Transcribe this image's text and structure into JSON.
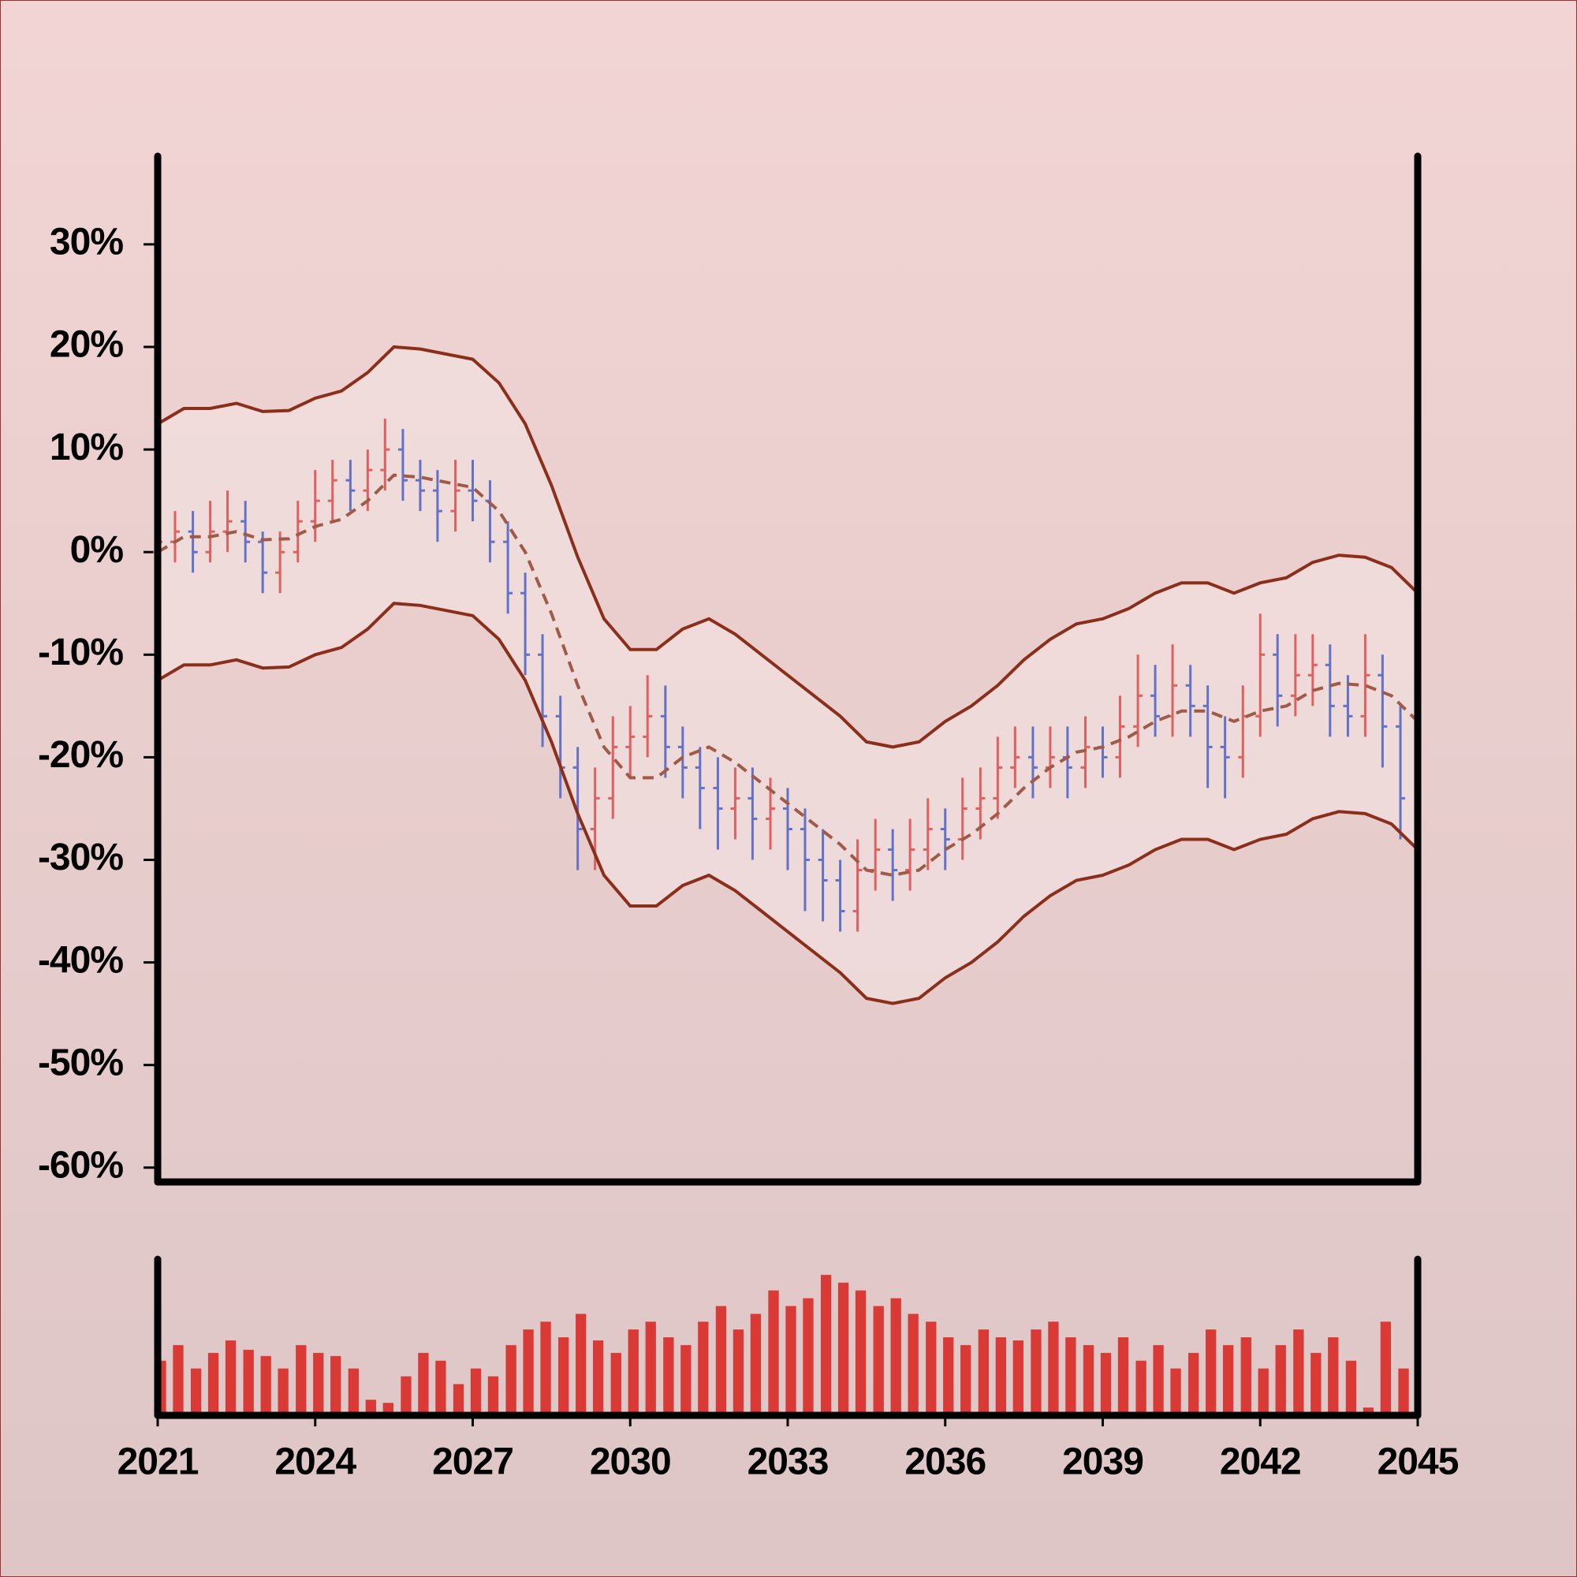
{
  "chart_data": {
    "type": "ohlc",
    "xlim": [
      2021,
      2045
    ],
    "xticks": [
      2021,
      2024,
      2027,
      2030,
      2033,
      2036,
      2039,
      2042,
      2045
    ],
    "ylim": [
      -61.4,
      38.6
    ],
    "yticks": [
      {
        "value": 30,
        "label": "30%"
      },
      {
        "value": 20,
        "label": "20%"
      },
      {
        "value": 10,
        "label": "10%"
      },
      {
        "value": 0,
        "label": "0%"
      },
      {
        "value": -10,
        "label": "-10%"
      },
      {
        "value": -20,
        "label": "-20%"
      },
      {
        "value": -30,
        "label": "-30%"
      },
      {
        "value": -40,
        "label": "-40%"
      },
      {
        "value": -50,
        "label": "-50%"
      },
      {
        "value": -60,
        "label": "-60%"
      }
    ],
    "up_color": "#e06060",
    "down_color": "#6272c8",
    "x": [
      2021,
      2021.33,
      2021.67,
      2022,
      2022.33,
      2022.67,
      2023,
      2023.33,
      2023.67,
      2024,
      2024.33,
      2024.67,
      2025,
      2025.33,
      2025.67,
      2026,
      2026.33,
      2026.67,
      2027,
      2027.33,
      2027.67,
      2028,
      2028.33,
      2028.67,
      2029,
      2029.33,
      2029.67,
      2030,
      2030.33,
      2030.67,
      2031,
      2031.33,
      2031.67,
      2032,
      2032.33,
      2032.67,
      2033,
      2033.33,
      2033.67,
      2034,
      2034.33,
      2034.67,
      2035,
      2035.33,
      2035.67,
      2036,
      2036.33,
      2036.67,
      2037,
      2037.33,
      2037.67,
      2038,
      2038.33,
      2038.67,
      2039,
      2039.33,
      2039.67,
      2040,
      2040.33,
      2040.67,
      2041,
      2041.33,
      2041.67,
      2042,
      2042.33,
      2042.67,
      2043,
      2043.33,
      2043.67,
      2044,
      2044.33,
      2044.67
    ],
    "open": [
      0,
      1,
      2,
      0,
      2,
      3,
      1,
      -2,
      0,
      3,
      5,
      7,
      6,
      8,
      10,
      7,
      6,
      4,
      6,
      5,
      1,
      -4,
      -10,
      -16,
      -21,
      -27,
      -24,
      -19,
      -18,
      -16,
      -19,
      -21,
      -23,
      -25,
      -24,
      -26,
      -25,
      -27,
      -30,
      -32,
      -35,
      -31,
      -29,
      -31,
      -29,
      -27,
      -28,
      -25,
      -24,
      -21,
      -20,
      -21,
      -20,
      -21,
      -19,
      -20,
      -17,
      -14,
      -16,
      -13,
      -15,
      -19,
      -20,
      -16,
      -10,
      -14,
      -12,
      -11,
      -15,
      -16,
      -12,
      -17
    ],
    "high": [
      4,
      4,
      4,
      5,
      6,
      5,
      2,
      2,
      5,
      8,
      9,
      9,
      10,
      13,
      12,
      9,
      8,
      9,
      9,
      7,
      3,
      -2,
      -8,
      -14,
      -19,
      -21,
      -16,
      -15,
      -12,
      -13,
      -17,
      -19,
      -20,
      -21,
      -21,
      -22,
      -23,
      -25,
      -27,
      -30,
      -28,
      -26,
      -27,
      -26,
      -24,
      -25,
      -22,
      -21,
      -18,
      -17,
      -17,
      -17,
      -17,
      -16,
      -17,
      -14,
      -10,
      -11,
      -9,
      -11,
      -13,
      -16,
      -13,
      -6,
      -8,
      -8,
      -8,
      -9,
      -12,
      -8,
      -10,
      -15
    ],
    "low": [
      -3,
      -1,
      -2,
      -1,
      0,
      -1,
      -4,
      -4,
      -1,
      1,
      3,
      4,
      4,
      6,
      5,
      4,
      1,
      2,
      3,
      -1,
      -6,
      -12,
      -19,
      -24,
      -31,
      -31,
      -26,
      -22,
      -20,
      -22,
      -24,
      -27,
      -29,
      -28,
      -30,
      -29,
      -31,
      -35,
      -36,
      -37,
      -37,
      -33,
      -34,
      -33,
      -31,
      -31,
      -30,
      -28,
      -26,
      -23,
      -24,
      -23,
      -24,
      -23,
      -22,
      -22,
      -19,
      -18,
      -18,
      -18,
      -23,
      -24,
      -22,
      -18,
      -17,
      -16,
      -15,
      -18,
      -18,
      -18,
      -21,
      -28
    ],
    "close": [
      1,
      2,
      0,
      2,
      3,
      1,
      -2,
      0,
      3,
      5,
      7,
      6,
      8,
      10,
      7,
      6,
      4,
      6,
      5,
      1,
      -4,
      -10,
      -16,
      -21,
      -27,
      -24,
      -19,
      -18,
      -16,
      -19,
      -21,
      -23,
      -25,
      -24,
      -26,
      -25,
      -27,
      -30,
      -32,
      -35,
      -31,
      -29,
      -31,
      -29,
      -27,
      -28,
      -25,
      -24,
      -21,
      -20,
      -21,
      -20,
      -21,
      -19,
      -20,
      -17,
      -14,
      -16,
      -13,
      -15,
      -19,
      -20,
      -16,
      -10,
      -14,
      -12,
      -11,
      -15,
      -16,
      -12,
      -17,
      -24
    ],
    "bands": {
      "color": "#8b2e1a",
      "middle_color": "#a05a48",
      "x": [
        2021,
        2021.5,
        2022,
        2022.5,
        2023,
        2023.5,
        2024,
        2024.5,
        2025,
        2025.5,
        2026,
        2026.5,
        2027,
        2027.5,
        2028,
        2028.5,
        2029,
        2029.5,
        2030,
        2030.5,
        2031,
        2031.5,
        2032,
        2032.5,
        2033,
        2033.5,
        2034,
        2034.5,
        2035,
        2035.5,
        2036,
        2036.5,
        2037,
        2037.5,
        2038,
        2038.5,
        2039,
        2039.5,
        2040,
        2040.5,
        2041,
        2041.5,
        2042,
        2042.5,
        2043,
        2043.5,
        2044,
        2044.5,
        2045
      ],
      "upper": [
        12.5,
        14,
        14,
        14.5,
        13.7,
        13.8,
        15,
        15.7,
        17.5,
        20,
        19.8,
        19.3,
        18.8,
        16.5,
        12.5,
        6.5,
        -0.5,
        -6.5,
        -9.5,
        -9.5,
        -7.5,
        -6.5,
        -8,
        -10,
        -12,
        -14,
        -16,
        -18.5,
        -19,
        -18.5,
        -16.5,
        -15,
        -13,
        -10.5,
        -8.5,
        -7,
        -6.5,
        -5.5,
        -4,
        -3,
        -3,
        -4,
        -3,
        -2.5,
        -1,
        -0.3,
        -0.5,
        -1.5,
        -4
      ],
      "middle": [
        0,
        1.5,
        1.5,
        2,
        1.2,
        1.3,
        2.5,
        3.2,
        5,
        7.5,
        7.3,
        6.8,
        6.3,
        4,
        0,
        -6,
        -13,
        -19,
        -22,
        -22,
        -20,
        -19,
        -20.5,
        -22.5,
        -24.5,
        -26.5,
        -28.5,
        -31,
        -31.5,
        -31,
        -29,
        -27.5,
        -25.5,
        -23,
        -21,
        -19.5,
        -19,
        -18,
        -16.5,
        -15.5,
        -15.5,
        -16.5,
        -15.5,
        -15,
        -13.5,
        -12.8,
        -13,
        -14,
        -16.5
      ],
      "lower": [
        -12.5,
        -11,
        -11,
        -10.5,
        -11.3,
        -11.2,
        -10,
        -9.3,
        -7.5,
        -5,
        -5.2,
        -5.7,
        -6.2,
        -8.5,
        -12.5,
        -18.5,
        -25.5,
        -31.5,
        -34.5,
        -34.5,
        -32.5,
        -31.5,
        -33,
        -35,
        -37,
        -39,
        -41,
        -43.5,
        -44,
        -43.5,
        -41.5,
        -40,
        -38,
        -35.5,
        -33.5,
        -32,
        -31.5,
        -30.5,
        -29,
        -28,
        -28,
        -29,
        -28,
        -27.5,
        -26,
        -25.3,
        -25.5,
        -26.5,
        -29
      ]
    },
    "volume": {
      "color": "#d93a35",
      "ylim": [
        0,
        100
      ],
      "values": [
        35,
        45,
        30,
        40,
        48,
        42,
        38,
        30,
        45,
        40,
        38,
        30,
        10,
        8,
        25,
        40,
        35,
        20,
        30,
        25,
        45,
        55,
        60,
        50,
        65,
        48,
        40,
        55,
        60,
        50,
        45,
        60,
        70,
        55,
        65,
        80,
        70,
        75,
        90,
        85,
        80,
        70,
        75,
        65,
        60,
        50,
        45,
        55,
        50,
        48,
        55,
        60,
        50,
        45,
        40,
        50,
        35,
        45,
        30,
        40,
        55,
        45,
        50,
        30,
        45,
        55,
        40,
        50,
        35,
        5,
        60,
        30
      ]
    }
  }
}
